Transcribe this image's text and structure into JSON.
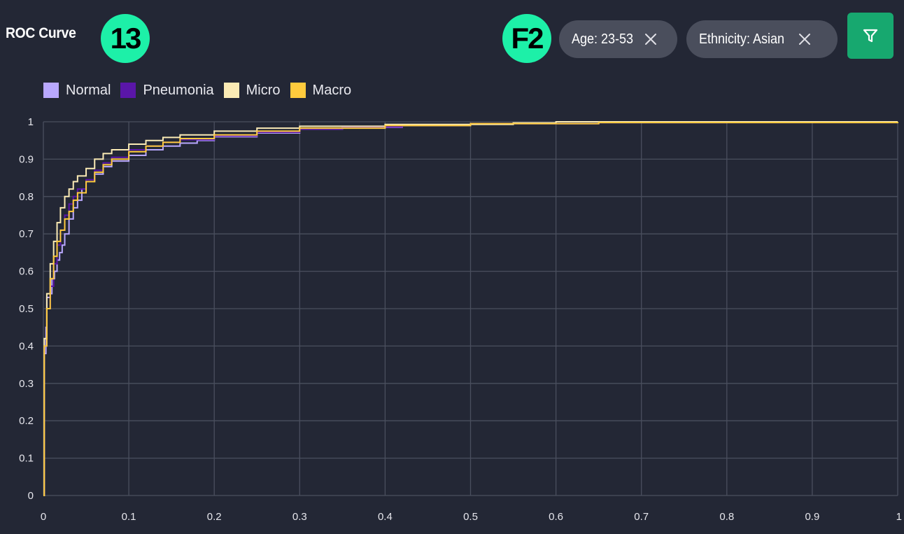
{
  "header": {
    "title": "ROC Curve",
    "badge_left": "13",
    "badge_right": "F2"
  },
  "filters": {
    "chips": [
      {
        "label": "Age: 23-53",
        "close_icon": "close-icon"
      },
      {
        "label": "Ethnicity: Asian",
        "close_icon": "close-icon"
      }
    ],
    "filter_icon": "filter-funnel-icon"
  },
  "colors": {
    "background": "#232735",
    "grid": "#4a4f5e",
    "badge": "#1df0a8",
    "filter_button": "#17a86f",
    "chip": "#4a4e5c"
  },
  "chart_data": {
    "type": "line",
    "xlim": [
      0,
      1
    ],
    "ylim": [
      0,
      1
    ],
    "grid": true,
    "legend_position": "top-left",
    "x_ticks": [
      "0",
      "0.1",
      "0.2",
      "0.3",
      "0.4",
      "0.5",
      "0.6",
      "0.7",
      "0.8",
      "0.9",
      "1"
    ],
    "y_ticks": [
      "0",
      "0.1",
      "0.2",
      "0.3",
      "0.4",
      "0.5",
      "0.6",
      "0.7",
      "0.8",
      "0.9",
      "1"
    ],
    "series": [
      {
        "name": "Normal",
        "color": "#b9a8ff",
        "points": [
          [
            0,
            0
          ],
          [
            0.001,
            0.38
          ],
          [
            0.003,
            0.45
          ],
          [
            0.004,
            0.53
          ],
          [
            0.008,
            0.54
          ],
          [
            0.01,
            0.58
          ],
          [
            0.013,
            0.6
          ],
          [
            0.016,
            0.63
          ],
          [
            0.019,
            0.65
          ],
          [
            0.022,
            0.67
          ],
          [
            0.025,
            0.7
          ],
          [
            0.03,
            0.74
          ],
          [
            0.035,
            0.77
          ],
          [
            0.04,
            0.79
          ],
          [
            0.045,
            0.82
          ],
          [
            0.05,
            0.84
          ],
          [
            0.06,
            0.86
          ],
          [
            0.07,
            0.88
          ],
          [
            0.08,
            0.895
          ],
          [
            0.1,
            0.91
          ],
          [
            0.12,
            0.925
          ],
          [
            0.14,
            0.935
          ],
          [
            0.16,
            0.943
          ],
          [
            0.18,
            0.95
          ],
          [
            0.2,
            0.96
          ],
          [
            0.25,
            0.97
          ],
          [
            0.3,
            0.98
          ],
          [
            0.35,
            0.985
          ],
          [
            0.42,
            0.99
          ],
          [
            0.5,
            0.995
          ],
          [
            0.65,
            0.998
          ],
          [
            0.8,
            1
          ],
          [
            1,
            1
          ]
        ]
      },
      {
        "name": "Pneumonia",
        "color": "#5a16a8",
        "points": [
          [
            0,
            0
          ],
          [
            0.001,
            0.4
          ],
          [
            0.004,
            0.5
          ],
          [
            0.008,
            0.56
          ],
          [
            0.012,
            0.62
          ],
          [
            0.016,
            0.67
          ],
          [
            0.02,
            0.71
          ],
          [
            0.025,
            0.75
          ],
          [
            0.03,
            0.78
          ],
          [
            0.035,
            0.8
          ],
          [
            0.04,
            0.82
          ],
          [
            0.05,
            0.845
          ],
          [
            0.06,
            0.87
          ],
          [
            0.07,
            0.89
          ],
          [
            0.08,
            0.905
          ],
          [
            0.1,
            0.925
          ],
          [
            0.12,
            0.935
          ],
          [
            0.14,
            0.945
          ],
          [
            0.16,
            0.952
          ],
          [
            0.2,
            0.962
          ],
          [
            0.25,
            0.972
          ],
          [
            0.3,
            0.98
          ],
          [
            0.35,
            0.986
          ],
          [
            0.42,
            0.991
          ],
          [
            0.5,
            0.995
          ],
          [
            0.65,
            0.998
          ],
          [
            1,
            1
          ]
        ]
      },
      {
        "name": "Micro",
        "color": "#fbebb5",
        "points": [
          [
            0,
            0
          ],
          [
            0.001,
            0.42
          ],
          [
            0.004,
            0.54
          ],
          [
            0.008,
            0.62
          ],
          [
            0.012,
            0.68
          ],
          [
            0.016,
            0.73
          ],
          [
            0.02,
            0.77
          ],
          [
            0.025,
            0.8
          ],
          [
            0.03,
            0.82
          ],
          [
            0.035,
            0.84
          ],
          [
            0.04,
            0.855
          ],
          [
            0.05,
            0.875
          ],
          [
            0.06,
            0.9
          ],
          [
            0.07,
            0.915
          ],
          [
            0.08,
            0.925
          ],
          [
            0.1,
            0.94
          ],
          [
            0.12,
            0.95
          ],
          [
            0.14,
            0.958
          ],
          [
            0.16,
            0.965
          ],
          [
            0.2,
            0.975
          ],
          [
            0.25,
            0.983
          ],
          [
            0.3,
            0.988
          ],
          [
            0.4,
            0.993
          ],
          [
            0.55,
            0.997
          ],
          [
            0.6,
            1
          ],
          [
            1,
            1
          ]
        ]
      },
      {
        "name": "Macro",
        "color": "#ffcb3d",
        "points": [
          [
            0,
            0
          ],
          [
            0.001,
            0.4
          ],
          [
            0.004,
            0.5
          ],
          [
            0.008,
            0.58
          ],
          [
            0.012,
            0.64
          ],
          [
            0.016,
            0.68
          ],
          [
            0.02,
            0.71
          ],
          [
            0.025,
            0.74
          ],
          [
            0.03,
            0.76
          ],
          [
            0.035,
            0.79
          ],
          [
            0.04,
            0.81
          ],
          [
            0.05,
            0.84
          ],
          [
            0.06,
            0.865
          ],
          [
            0.07,
            0.885
          ],
          [
            0.08,
            0.9
          ],
          [
            0.1,
            0.92
          ],
          [
            0.12,
            0.935
          ],
          [
            0.14,
            0.945
          ],
          [
            0.16,
            0.955
          ],
          [
            0.2,
            0.965
          ],
          [
            0.25,
            0.975
          ],
          [
            0.3,
            0.983
          ],
          [
            0.4,
            0.99
          ],
          [
            0.5,
            0.995
          ],
          [
            0.65,
            0.998
          ],
          [
            1,
            1
          ]
        ]
      }
    ]
  }
}
